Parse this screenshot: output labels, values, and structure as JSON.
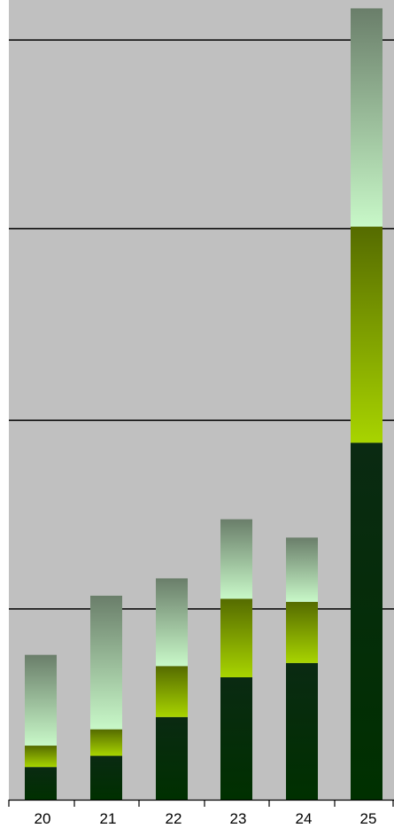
{
  "chart_data": {
    "type": "bar",
    "stacked": true,
    "categories": [
      "20",
      "21",
      "22",
      "23",
      "24",
      "25"
    ],
    "series": [
      {
        "values": [
          32,
          43,
          81,
          120,
          134,
          350
        ]
      },
      {
        "values": [
          21,
          26,
          50,
          77,
          60,
          212
        ]
      },
      {
        "values": [
          89,
          131,
          86,
          78,
          63,
          214
        ]
      }
    ],
    "ylim": [
      0,
      760
    ],
    "gridlines": [
      187,
      372,
      560,
      745
    ],
    "grid": true,
    "legend": "none",
    "colors": {
      "plot_background": "#C0C0C0",
      "gridline": "#000000",
      "axis": "#000000",
      "series_0_top": "#0A2A12",
      "series_0_bottom": "#003000",
      "series_1_top": "#556B00",
      "series_1_bottom": "#A8D400",
      "series_2_top": "#6A7E6A",
      "series_2_bottom": "#C8F8C8"
    }
  }
}
